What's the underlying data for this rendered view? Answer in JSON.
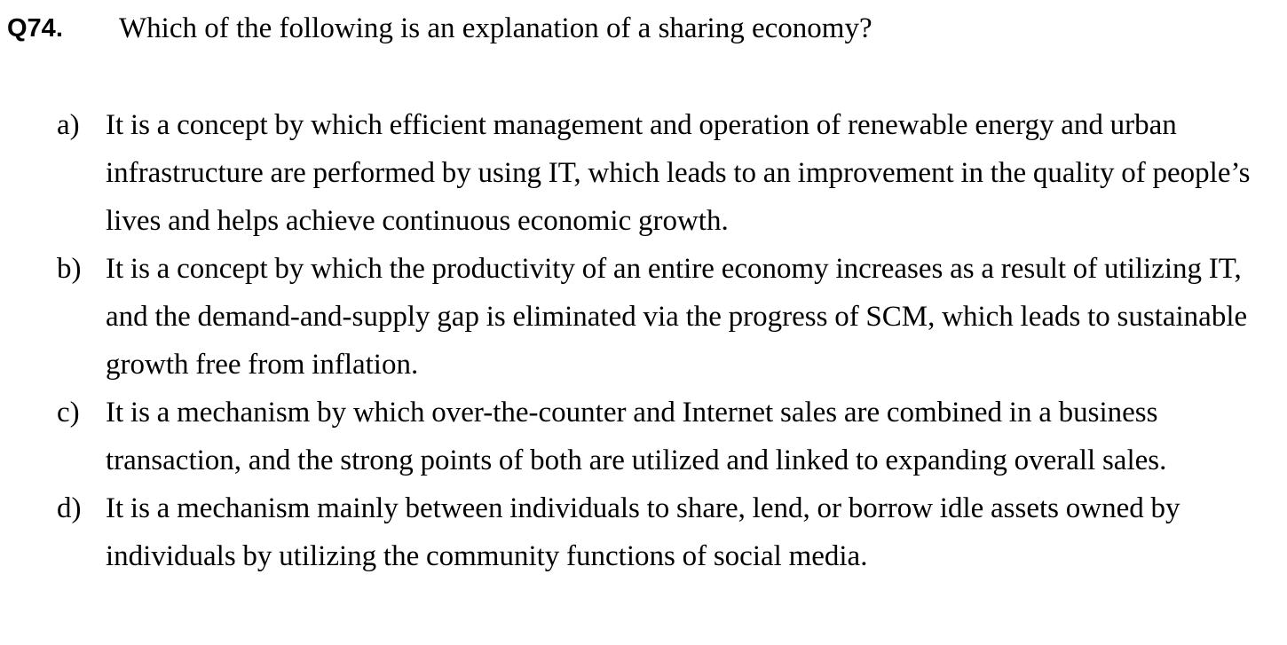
{
  "question": {
    "number": "Q74.",
    "text": "Which of the following is an explanation of a sharing economy?"
  },
  "options": [
    {
      "label": "a)",
      "text": "It is a concept by which efficient management and operation of renewable energy and urban infrastructure are performed by using IT, which leads to an improvement in the quality of people’s lives and helps achieve continuous economic growth."
    },
    {
      "label": "b)",
      "text": "It is a concept by which the productivity of an entire economy increases as a result of utilizing IT, and the demand-and-supply gap is eliminated via the progress of SCM, which leads to sustainable growth free from inflation."
    },
    {
      "label": "c)",
      "text": "It is a mechanism by which over-the-counter and Internet sales are combined in a business transaction, and the strong points of both are utilized and linked to expanding overall sales."
    },
    {
      "label": "d)",
      "text": "It is a mechanism mainly between individuals to share, lend, or borrow idle assets owned by individuals by utilizing the community functions of social media."
    }
  ]
}
